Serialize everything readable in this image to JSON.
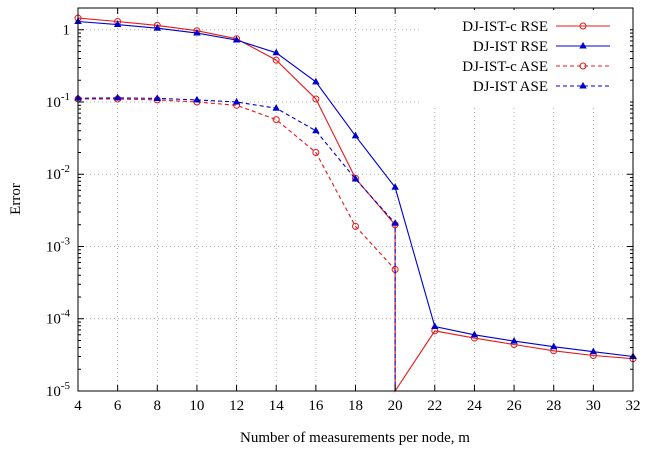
{
  "chart_data": {
    "type": "line",
    "xlabel": "Number of measurements per node, m",
    "ylabel": "Error",
    "x_range": [
      4,
      32
    ],
    "y_range": [
      1e-05,
      2
    ],
    "y_scale": "log",
    "grid": true,
    "legend_position": "top-right",
    "x_ticks": [
      "4",
      "6",
      "8",
      "10",
      "12",
      "14",
      "16",
      "18",
      "20",
      "22",
      "24",
      "26",
      "28",
      "30",
      "32"
    ],
    "y_ticks": [
      {
        "value": 1,
        "base": "1",
        "exp": ""
      },
      {
        "value": 0.1,
        "base": "10",
        "exp": "-1"
      },
      {
        "value": 0.01,
        "base": "10",
        "exp": "-2"
      },
      {
        "value": 0.001,
        "base": "10",
        "exp": "-3"
      },
      {
        "value": 0.0001,
        "base": "10",
        "exp": "-4"
      },
      {
        "value": 1e-05,
        "base": "10",
        "exp": "-5"
      }
    ],
    "series": [
      {
        "name": "DJ-IST-c RSE",
        "color": "#e41a1c",
        "dash": "solid",
        "marker": "circle",
        "x": [
          4,
          6,
          8,
          10,
          12,
          14,
          16,
          18,
          20,
          20,
          22,
          24,
          26,
          28,
          30,
          32
        ],
        "y": [
          1.45,
          1.3,
          1.15,
          0.97,
          0.75,
          0.38,
          0.11,
          0.0088,
          0.002,
          1e-05,
          6.8e-05,
          5.4e-05,
          4.4e-05,
          3.6e-05,
          3.1e-05,
          2.8e-05
        ]
      },
      {
        "name": "DJ-IST RSE",
        "color": "#0000cc",
        "dash": "solid",
        "marker": "triangle",
        "x": [
          4,
          6,
          8,
          10,
          12,
          14,
          16,
          18,
          20,
          22,
          24,
          26,
          28,
          30,
          32
        ],
        "y": [
          1.3,
          1.18,
          1.05,
          0.9,
          0.72,
          0.48,
          0.19,
          0.034,
          0.0066,
          7.8e-05,
          6e-05,
          4.9e-05,
          4.1e-05,
          3.5e-05,
          3e-05
        ]
      },
      {
        "name": "DJ-IST-c ASE",
        "color": "#e41a1c",
        "dash": "dashed",
        "marker": "circle",
        "x": [
          4,
          6,
          8,
          10,
          12,
          14,
          16,
          18,
          20,
          20
        ],
        "y": [
          0.11,
          0.11,
          0.107,
          0.1,
          0.09,
          0.057,
          0.02,
          0.0019,
          0.00048,
          1e-05
        ]
      },
      {
        "name": "DJ-IST ASE",
        "color": "#0000cc",
        "dash": "dashed",
        "marker": "triangle",
        "x": [
          4,
          6,
          8,
          10,
          12,
          14,
          16,
          18,
          20,
          20
        ],
        "y": [
          0.113,
          0.114,
          0.112,
          0.107,
          0.1,
          0.082,
          0.04,
          0.0086,
          0.0021,
          1e-05
        ]
      }
    ]
  }
}
